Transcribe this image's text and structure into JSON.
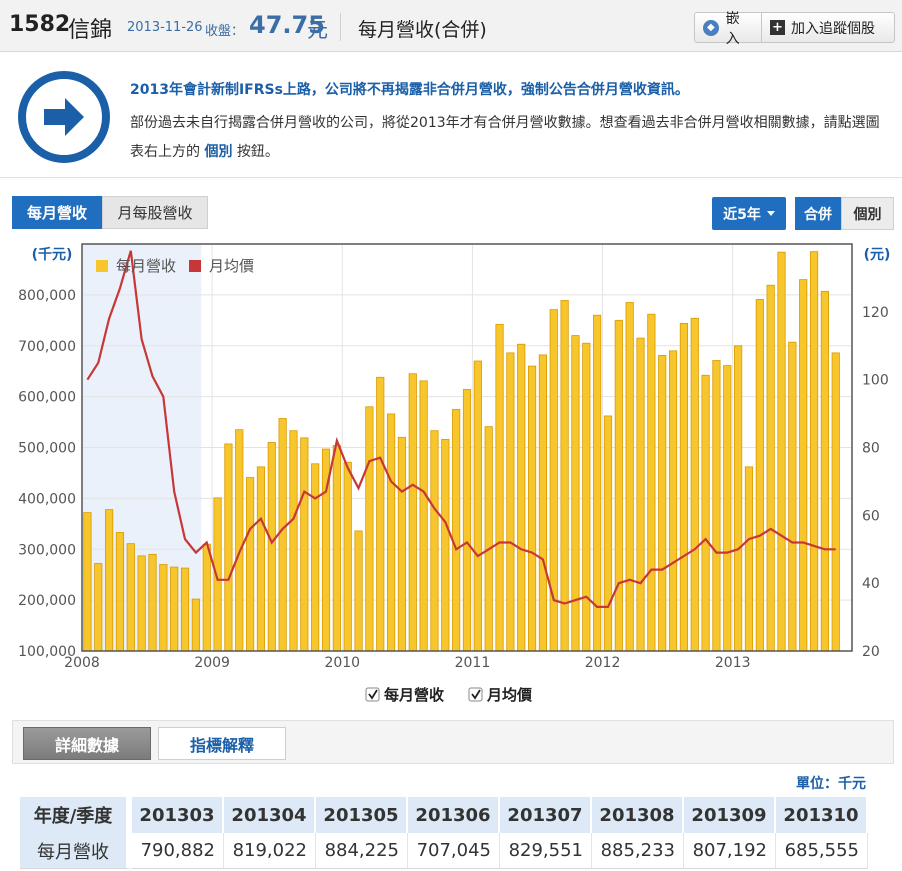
{
  "header": {
    "stock_code": "1582",
    "stock_name": "信錦",
    "date": "2013-11-26",
    "close_label": "收盤：",
    "price": "47.75",
    "price_unit": "元",
    "page_title": "每月營收(合併)",
    "embed_label": "嵌入",
    "track_label": "加入追蹤個股"
  },
  "notice": {
    "title": "2013年會計新制IFRSs上路，公司將不再揭露非合併月營收，強制公告合併月營收資訊。",
    "body_before": "部份過去未自行揭露合併月營收的公司，將從2013年才有合併月營收數據。想查看過去非合併月營收相關數據，請點選圖表右上方的 ",
    "body_link": "個別",
    "body_after": " 按鈕。"
  },
  "tabs": {
    "monthly": "每月營收",
    "eps": "月每股營收",
    "range": "近5年",
    "consolidated": "合併",
    "individual": "個別"
  },
  "chart_data": {
    "type": "bar",
    "left_axis_unit": "(千元)",
    "right_axis_unit": "(元)",
    "y_left_ticks": [
      "100,000",
      "200,000",
      "300,000",
      "400,000",
      "500,000",
      "600,000",
      "700,000",
      "800,000"
    ],
    "y_right_ticks": [
      "20",
      "40",
      "60",
      "80",
      "100",
      "120"
    ],
    "ylim_left": [
      100000,
      900000
    ],
    "ylim_right": [
      20,
      140
    ],
    "x_ticks": [
      "2008",
      "2009",
      "2010",
      "2011",
      "2012",
      "2013"
    ],
    "grid": true,
    "legend_position": "top-left",
    "colors": {
      "bar": "#f7c62c",
      "bar_edge": "#d99a00",
      "line": "#c83737"
    },
    "series": [
      {
        "name": "每月營收",
        "kind": "bar",
        "axis": "left",
        "start": "2008-01",
        "values": [
          372000,
          272000,
          378000,
          333000,
          311000,
          287000,
          290000,
          270000,
          265000,
          263000,
          202000,
          310000,
          401000,
          507000,
          535000,
          441000,
          462000,
          510000,
          557000,
          533000,
          519000,
          468000,
          497000,
          504000,
          471000,
          336000,
          580000,
          638000,
          566000,
          520000,
          645000,
          631000,
          533000,
          516000,
          575000,
          614000,
          670000,
          541000,
          742000,
          686000,
          703000,
          660000,
          682000,
          771000,
          789000,
          720000,
          705000,
          760000,
          562000,
          750000,
          785000,
          715000,
          762000,
          681000,
          690000,
          744000,
          754000,
          642000,
          671000,
          661000,
          700000,
          462000,
          791000,
          819000,
          884000,
          707000,
          830000,
          885000,
          807000,
          686000
        ]
      },
      {
        "name": "月均價",
        "kind": "line",
        "axis": "right",
        "start": "2008-01",
        "values": [
          100,
          105,
          118,
          127,
          138,
          112,
          101,
          95,
          67,
          53,
          49,
          52,
          41,
          41,
          49,
          56,
          59,
          52,
          56,
          59,
          67,
          65,
          67,
          82,
          74,
          68,
          76,
          77,
          70,
          67,
          69,
          67,
          62,
          58,
          50,
          52,
          48,
          50,
          52,
          52,
          50,
          49,
          47,
          35,
          34,
          35,
          36,
          33,
          33,
          40,
          41,
          40,
          44,
          44,
          46,
          48,
          50,
          53,
          49,
          49,
          50,
          53,
          54,
          56,
          54,
          52,
          52,
          51,
          50,
          50
        ]
      }
    ]
  },
  "detail": {
    "tab_detail": "詳細數據",
    "tab_explain": "指標解釋",
    "unit": "單位：千元"
  },
  "table": {
    "corner": "年度/季度",
    "row_label": "每月營收",
    "columns": [
      "201303",
      "201304",
      "201305",
      "201306",
      "201307",
      "201308",
      "201309",
      "201310"
    ],
    "values": [
      "790,882",
      "819,022",
      "884,225",
      "707,045",
      "829,551",
      "885,233",
      "807,192",
      "685,555"
    ]
  }
}
